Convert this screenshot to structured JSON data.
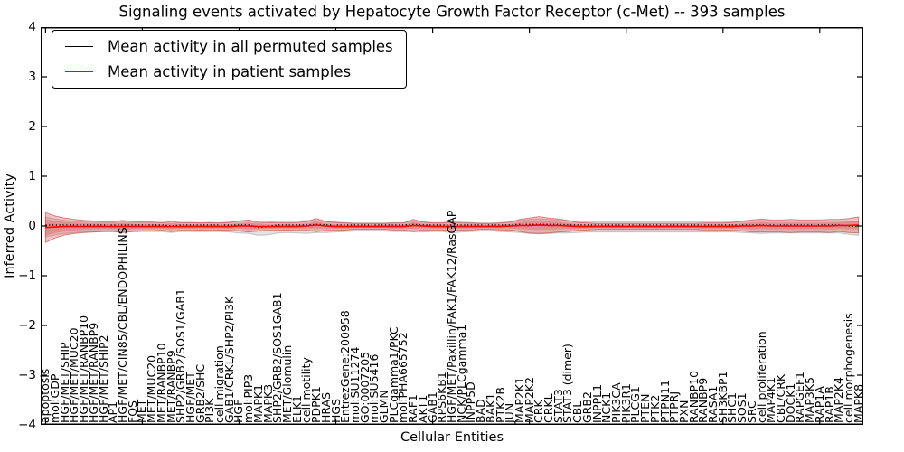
{
  "chart_data": {
    "type": "line",
    "title": "Signaling events activated by Hepatocyte Growth Factor Receptor (c-Met) -- 393 samples",
    "xlabel": "Cellular Entities",
    "ylabel": "Inferred Activity",
    "ylim": [
      -4,
      4
    ],
    "yticks": [
      4,
      3,
      2,
      1,
      0,
      -1,
      -2,
      -3,
      -4
    ],
    "ytick_labels": [
      "4",
      "3",
      "2",
      "1",
      "0",
      "−1",
      "−2",
      "−3",
      "−4"
    ],
    "x_major_tick_every": 10,
    "grid": false,
    "legend_position": "upper left",
    "categories": [
      "apoptosis",
      "mol:GDP",
      "HGF/MET/SHIP",
      "HGF/MET/MUC20",
      "HGF/MET/RANBP10",
      "HGF/MET/RANBP9",
      "HGF/MET/SHIP2",
      "AP1",
      "HGF/MET/CIN85/CBL/ENDOPHILINS",
      "FOS",
      "MET",
      "MET/MUC20",
      "MET/RANBP10",
      "MET/RANBP9",
      "SHP2/GRB2/SOS1/GAB1",
      "HGF/MET",
      "GRB2/SHC",
      "PI3K",
      "cell migration",
      "GAB1/CRKL/SHP2/PI3K",
      "HGF",
      "mol:PIP3",
      "MAPK1",
      "MAPK3",
      "SHP2/GRB2/SOS1GAB1",
      "MET/Glomulin",
      "ELK1",
      "cell motility",
      "PDPK1",
      "HRAS",
      "HGS",
      "EntrezGene:200958",
      "mol:SU11274",
      "GO:0007205",
      "mol:SU5416",
      "GLMN",
      "PLCgamma1/PKC",
      "mol:PHA665752",
      "RAF1",
      "AKT1",
      "GAB1",
      "RPS6KB1",
      "HGF/MET/Paxillin/FAK1/FAK12/RasGAP",
      "NCK/PLCgamma1",
      "INPP5D",
      "BAD",
      "BAK1",
      "PTK2B",
      "JUN",
      "MAP2K1",
      "MAP2K2",
      "CRK",
      "CRKL",
      "STAT3",
      "STAT3 (dimer)",
      "CBL",
      "GRB2",
      "INPPL1",
      "NCK1",
      "PIK3CA",
      "PIK3R1",
      "PLCG1",
      "PTEN",
      "PTK2",
      "PTPN11",
      "PTPRJ",
      "PXN",
      "RANBP10",
      "RANBP9",
      "RASA1",
      "SH3KBP1",
      "SHC1",
      "SOS1",
      "SRC",
      "cell proliferation",
      "MAP4K1",
      "CBL/CRK",
      "DOCK1",
      "RAPGEF1",
      "MAP3K5",
      "RAP1A",
      "RAP1B",
      "MAP2K4",
      "cell morphogenesis",
      "MAPK8"
    ],
    "series": [
      {
        "name": "Mean activity in all permuted samples",
        "color": "#000000",
        "line_style": "dotted",
        "band_fill": "#a8a8a8",
        "band_edge": "#8c8c8c",
        "band_offset": -0.04,
        "mean": [
          0.02,
          0.02,
          0.02,
          0.02,
          0.02,
          0.02,
          0.02,
          0.02,
          0.02,
          0.02,
          0.02,
          0.02,
          0.02,
          0.0,
          0.02,
          0.02,
          0.02,
          0.02,
          0.02,
          0.02,
          0.02,
          0.02,
          -0.03,
          -0.01,
          0.02,
          0.02,
          0.02,
          0.02,
          0.03,
          0.02,
          0.02,
          0.02,
          0.02,
          0.02,
          0.02,
          0.02,
          0.02,
          0.02,
          0.03,
          0.02,
          0.02,
          0.02,
          0.02,
          0.02,
          0.02,
          0.02,
          0.02,
          0.02,
          0.02,
          0.03,
          0.03,
          0.03,
          0.03,
          0.03,
          0.02,
          0.02,
          0.02,
          0.02,
          0.02,
          0.02,
          0.02,
          0.02,
          0.02,
          0.02,
          0.02,
          0.02,
          0.02,
          0.02,
          0.02,
          0.02,
          0.02,
          0.02,
          0.02,
          0.02,
          0.02,
          0.02,
          0.02,
          0.02,
          0.02,
          0.02,
          0.02,
          0.02,
          0.02,
          0.0,
          -0.01
        ],
        "band_halfwidth": [
          0.2,
          0.16,
          0.13,
          0.11,
          0.1,
          0.1,
          0.09,
          0.09,
          0.1,
          0.09,
          0.09,
          0.09,
          0.09,
          0.09,
          0.09,
          0.09,
          0.09,
          0.09,
          0.09,
          0.1,
          0.12,
          0.13,
          0.12,
          0.13,
          0.12,
          0.11,
          0.12,
          0.13,
          0.12,
          0.11,
          0.1,
          0.09,
          0.08,
          0.08,
          0.08,
          0.08,
          0.09,
          0.09,
          0.11,
          0.1,
          0.09,
          0.09,
          0.12,
          0.1,
          0.09,
          0.08,
          0.08,
          0.09,
          0.1,
          0.12,
          0.14,
          0.15,
          0.14,
          0.13,
          0.12,
          0.11,
          0.1,
          0.1,
          0.1,
          0.1,
          0.1,
          0.1,
          0.1,
          0.1,
          0.1,
          0.1,
          0.1,
          0.1,
          0.1,
          0.1,
          0.1,
          0.1,
          0.11,
          0.12,
          0.13,
          0.12,
          0.12,
          0.12,
          0.12,
          0.12,
          0.12,
          0.12,
          0.12,
          0.13,
          0.14
        ]
      },
      {
        "name": "Mean activity in patient samples",
        "color": "#ff0000",
        "line_style": "solid",
        "band_fill": "#e05050",
        "band_edge": "#c83c3c",
        "band_offset": 0,
        "mean": [
          -0.03,
          -0.02,
          -0.01,
          -0.01,
          -0.01,
          -0.01,
          -0.01,
          -0.01,
          -0.01,
          -0.01,
          -0.01,
          -0.01,
          -0.01,
          -0.01,
          -0.01,
          -0.01,
          -0.01,
          -0.01,
          -0.01,
          -0.01,
          0.0,
          0.0,
          -0.01,
          -0.01,
          -0.01,
          -0.01,
          -0.01,
          0.0,
          0.02,
          0.0,
          -0.01,
          -0.01,
          -0.01,
          -0.01,
          -0.01,
          -0.01,
          -0.01,
          -0.01,
          0.01,
          0.0,
          -0.01,
          -0.01,
          -0.01,
          -0.01,
          -0.01,
          -0.01,
          -0.01,
          -0.01,
          0.0,
          0.01,
          0.01,
          0.02,
          0.01,
          0.01,
          0.0,
          -0.01,
          -0.01,
          -0.01,
          -0.01,
          -0.01,
          -0.01,
          -0.01,
          -0.01,
          -0.01,
          -0.01,
          -0.01,
          -0.01,
          -0.01,
          -0.01,
          -0.01,
          -0.01,
          -0.01,
          0.0,
          0.0,
          0.01,
          0.0,
          0.0,
          0.0,
          0.0,
          0.0,
          0.0,
          0.0,
          0.01,
          0.01,
          0.02
        ],
        "band_halfwidth": [
          0.3,
          0.22,
          0.17,
          0.14,
          0.12,
          0.11,
          0.1,
          0.1,
          0.12,
          0.1,
          0.09,
          0.09,
          0.08,
          0.1,
          0.08,
          0.08,
          0.07,
          0.08,
          0.07,
          0.08,
          0.1,
          0.12,
          0.09,
          0.08,
          0.08,
          0.07,
          0.08,
          0.09,
          0.13,
          0.09,
          0.08,
          0.07,
          0.06,
          0.06,
          0.06,
          0.06,
          0.07,
          0.07,
          0.12,
          0.08,
          0.07,
          0.07,
          0.09,
          0.07,
          0.07,
          0.06,
          0.06,
          0.07,
          0.08,
          0.12,
          0.15,
          0.17,
          0.15,
          0.13,
          0.11,
          0.08,
          0.07,
          0.06,
          0.06,
          0.06,
          0.06,
          0.06,
          0.06,
          0.06,
          0.06,
          0.06,
          0.06,
          0.06,
          0.07,
          0.07,
          0.07,
          0.08,
          0.1,
          0.12,
          0.13,
          0.12,
          0.12,
          0.13,
          0.12,
          0.12,
          0.12,
          0.13,
          0.12,
          0.14,
          0.16
        ]
      }
    ]
  }
}
